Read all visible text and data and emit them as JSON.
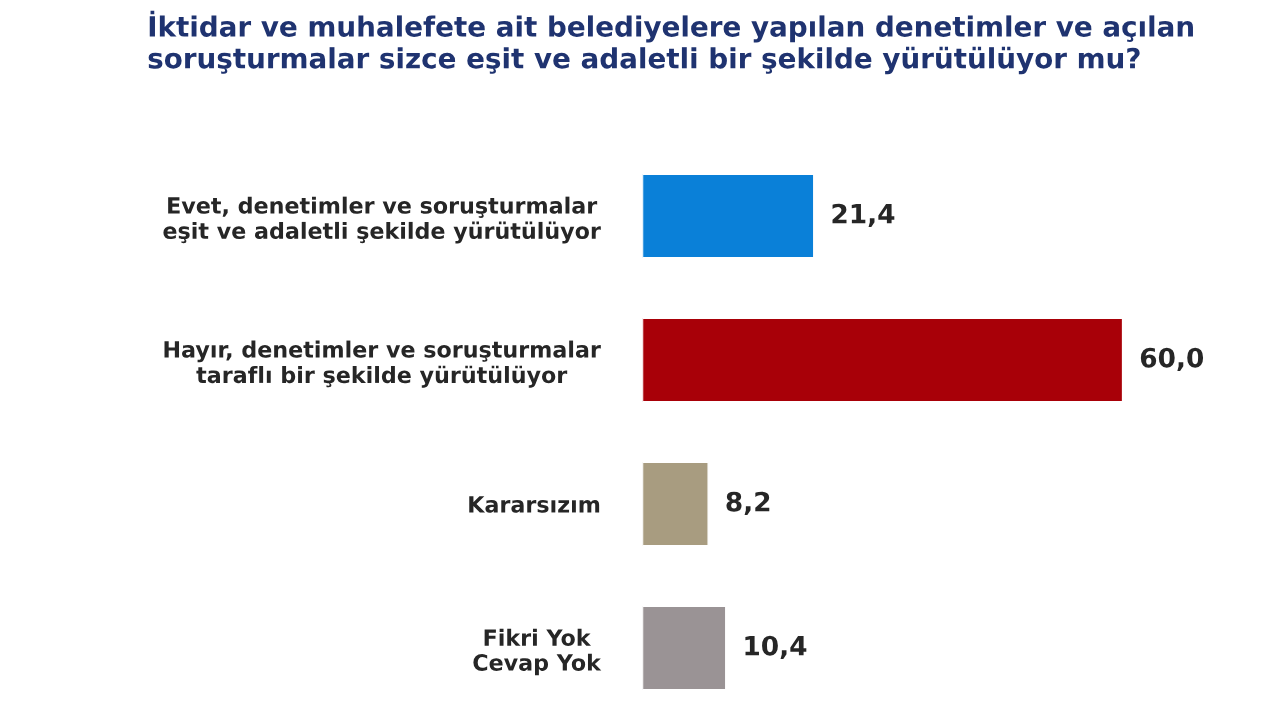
{
  "chart_data": {
    "type": "bar",
    "orientation": "horizontal",
    "title": "İktidar ve muhalefete ait belediyelere yapılan denetimler ve açılan soruşturmalar sizce eşit ve adaletli bir şekilde yürütülüyor mu?",
    "categories": [
      "Evet, denetimler ve soruşturmalar\neşit ve adaletli şekilde yürütülüyor",
      "Hayır, denetimler ve soruşturmalar\ntaraflı bir şekilde yürütülüyor",
      "Kararsızım",
      "Fikri Yok\nCevap Yok"
    ],
    "values": [
      21.4,
      60.0,
      8.2,
      10.4
    ],
    "colors": [
      "#0a80d8",
      "#a80008",
      "#a89c80",
      "#9a9395"
    ],
    "value_labels": [
      "21,4",
      "60,0",
      "8,2",
      "10,4"
    ],
    "grid": false,
    "legend": false
  }
}
